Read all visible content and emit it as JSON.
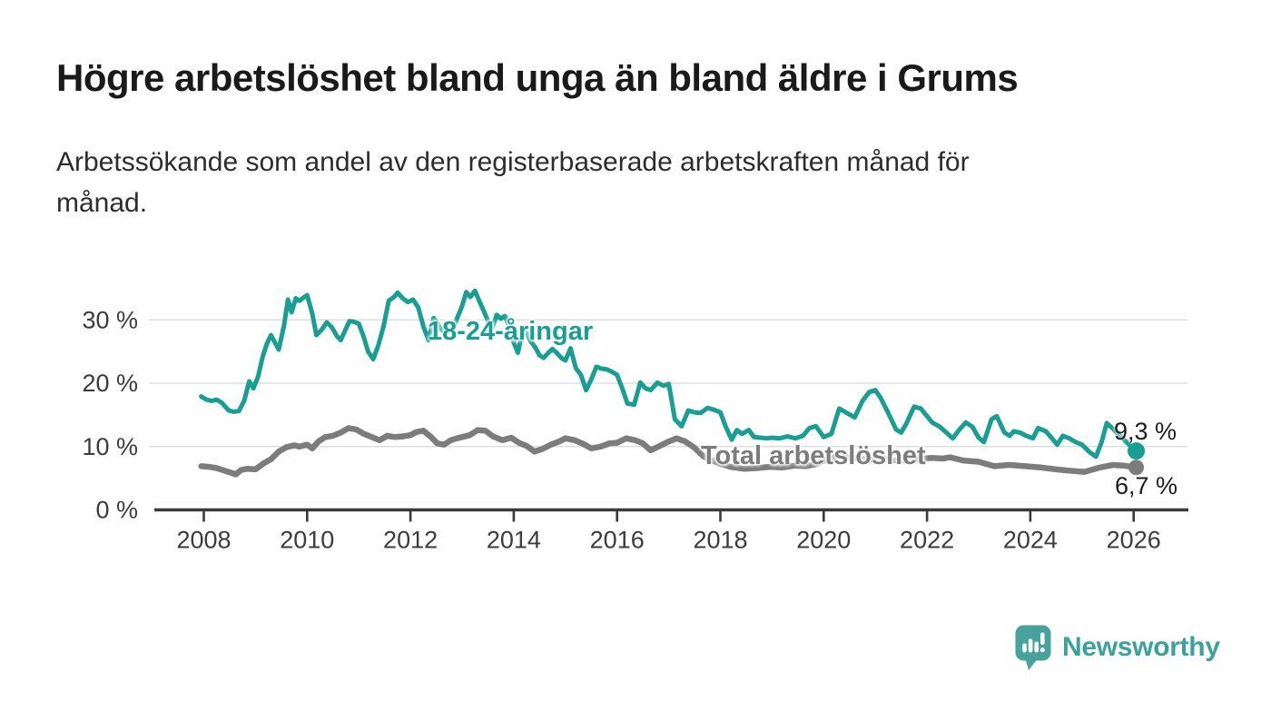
{
  "header": {
    "title": "Högre arbetslöshet bland unga än bland äldre i Grums",
    "subtitle_lines": [
      "Arbetssökande som andel av den registerbaserade arbetskraften månad för",
      "månad."
    ]
  },
  "footer": {
    "brand_name": "Newsworthy",
    "logo_icon": "newsworthy-speech-bubble-bar-chart-icon"
  },
  "colors": {
    "accent_teal": "#189e92",
    "total_gray": "#7c7c7c",
    "title_text": "#1a1a1a",
    "body_text": "#2d2d2d",
    "axis_text": "#3c3c3c",
    "axis_line": "#3a3a3a",
    "gridline": "#dedede",
    "end_label_text": "#1c1c1c",
    "logo_teal": "#47a29b"
  },
  "chart_data": {
    "type": "line",
    "unit": "%",
    "grid": "horizontal",
    "legend": "inline-series-labels",
    "x_axis": {
      "tick_values": [
        2008,
        2010,
        2012,
        2014,
        2016,
        2018,
        2020,
        2022,
        2024,
        2026
      ],
      "tick_labels": [
        "2008",
        "2010",
        "2012",
        "2014",
        "2016",
        "2018",
        "2020",
        "2022",
        "2024",
        "2026"
      ],
      "range": [
        2007.8,
        2027.0
      ]
    },
    "y_axis": {
      "tick_values": [
        0,
        10,
        20,
        30
      ],
      "tick_labels": [
        "0 %",
        "10 %",
        "20 %",
        "30 %"
      ],
      "range": [
        0,
        36
      ]
    },
    "series": [
      {
        "name": "18-24-åringar",
        "color": "#189e92",
        "end_label": "9,3 %",
        "last_value": 9.3,
        "points": [
          [
            2007.95,
            17.9
          ],
          [
            2008.05,
            17.4
          ],
          [
            2008.15,
            17.2
          ],
          [
            2008.25,
            17.4
          ],
          [
            2008.35,
            16.9
          ],
          [
            2008.48,
            15.7
          ],
          [
            2008.58,
            15.5
          ],
          [
            2008.68,
            15.6
          ],
          [
            2008.78,
            17.2
          ],
          [
            2008.88,
            20.3
          ],
          [
            2008.96,
            19.2
          ],
          [
            2009.05,
            21.0
          ],
          [
            2009.14,
            24.2
          ],
          [
            2009.22,
            26.2
          ],
          [
            2009.3,
            27.6
          ],
          [
            2009.38,
            26.4
          ],
          [
            2009.45,
            25.3
          ],
          [
            2009.55,
            29.0
          ],
          [
            2009.63,
            33.2
          ],
          [
            2009.7,
            31.2
          ],
          [
            2009.78,
            33.4
          ],
          [
            2009.85,
            33.0
          ],
          [
            2009.93,
            33.5
          ],
          [
            2010.0,
            33.9
          ],
          [
            2010.1,
            31.0
          ],
          [
            2010.18,
            27.6
          ],
          [
            2010.28,
            28.4
          ],
          [
            2010.38,
            29.6
          ],
          [
            2010.48,
            28.8
          ],
          [
            2010.58,
            27.4
          ],
          [
            2010.65,
            26.8
          ],
          [
            2010.75,
            28.6
          ],
          [
            2010.82,
            29.8
          ],
          [
            2010.9,
            29.7
          ],
          [
            2011.0,
            29.4
          ],
          [
            2011.1,
            27.2
          ],
          [
            2011.18,
            25.0
          ],
          [
            2011.28,
            23.8
          ],
          [
            2011.38,
            26.0
          ],
          [
            2011.48,
            29.0
          ],
          [
            2011.58,
            33.0
          ],
          [
            2011.68,
            33.6
          ],
          [
            2011.75,
            34.3
          ],
          [
            2011.85,
            33.4
          ],
          [
            2011.95,
            32.8
          ],
          [
            2012.05,
            33.2
          ],
          [
            2012.15,
            32.0
          ],
          [
            2012.25,
            29.0
          ],
          [
            2012.35,
            26.8
          ],
          [
            2012.45,
            30.3
          ],
          [
            2012.55,
            29.0
          ],
          [
            2012.63,
            28.2
          ],
          [
            2012.72,
            28.8
          ],
          [
            2012.8,
            27.8
          ],
          [
            2012.9,
            30.2
          ],
          [
            2013.0,
            32.2
          ],
          [
            2013.08,
            34.4
          ],
          [
            2013.16,
            33.6
          ],
          [
            2013.25,
            34.6
          ],
          [
            2013.33,
            33.0
          ],
          [
            2013.42,
            31.4
          ],
          [
            2013.5,
            29.8
          ],
          [
            2013.58,
            28.6
          ],
          [
            2013.67,
            30.8
          ],
          [
            2013.75,
            30.2
          ],
          [
            2013.83,
            30.6
          ],
          [
            2013.92,
            28.8
          ],
          [
            2014.0,
            26.4
          ],
          [
            2014.08,
            24.8
          ],
          [
            2014.17,
            28.4
          ],
          [
            2014.25,
            27.9
          ],
          [
            2014.33,
            26.6
          ],
          [
            2014.42,
            25.6
          ],
          [
            2014.5,
            24.4
          ],
          [
            2014.58,
            24.0
          ],
          [
            2014.67,
            24.8
          ],
          [
            2014.75,
            25.4
          ],
          [
            2014.83,
            24.8
          ],
          [
            2014.92,
            24.0
          ],
          [
            2015.0,
            23.6
          ],
          [
            2015.1,
            25.5
          ],
          [
            2015.2,
            22.4
          ],
          [
            2015.3,
            21.3
          ],
          [
            2015.4,
            18.9
          ],
          [
            2015.5,
            20.6
          ],
          [
            2015.6,
            22.6
          ],
          [
            2015.7,
            22.3
          ],
          [
            2015.8,
            22.2
          ],
          [
            2015.9,
            21.8
          ],
          [
            2016.0,
            21.3
          ],
          [
            2016.1,
            19.2
          ],
          [
            2016.2,
            16.8
          ],
          [
            2016.33,
            16.6
          ],
          [
            2016.45,
            20.1
          ],
          [
            2016.55,
            19.2
          ],
          [
            2016.65,
            18.9
          ],
          [
            2016.78,
            20.1
          ],
          [
            2016.9,
            19.6
          ],
          [
            2017.0,
            19.9
          ],
          [
            2017.12,
            14.3
          ],
          [
            2017.25,
            13.2
          ],
          [
            2017.38,
            15.7
          ],
          [
            2017.5,
            15.4
          ],
          [
            2017.62,
            15.3
          ],
          [
            2017.75,
            16.1
          ],
          [
            2017.88,
            15.8
          ],
          [
            2018.0,
            15.4
          ],
          [
            2018.1,
            13.2
          ],
          [
            2018.22,
            11.1
          ],
          [
            2018.32,
            12.6
          ],
          [
            2018.42,
            12.0
          ],
          [
            2018.55,
            12.6
          ],
          [
            2018.65,
            11.5
          ],
          [
            2018.78,
            11.4
          ],
          [
            2018.9,
            11.3
          ],
          [
            2019.0,
            11.4
          ],
          [
            2019.15,
            11.3
          ],
          [
            2019.3,
            11.6
          ],
          [
            2019.45,
            11.3
          ],
          [
            2019.6,
            11.7
          ],
          [
            2019.72,
            12.9
          ],
          [
            2019.85,
            13.2
          ],
          [
            2020.0,
            11.5
          ],
          [
            2020.15,
            12.0
          ],
          [
            2020.3,
            16.0
          ],
          [
            2020.45,
            15.3
          ],
          [
            2020.6,
            14.6
          ],
          [
            2020.75,
            17.2
          ],
          [
            2020.88,
            18.6
          ],
          [
            2021.0,
            18.9
          ],
          [
            2021.1,
            17.7
          ],
          [
            2021.25,
            15.3
          ],
          [
            2021.4,
            12.7
          ],
          [
            2021.5,
            12.2
          ],
          [
            2021.6,
            13.6
          ],
          [
            2021.75,
            16.3
          ],
          [
            2021.88,
            16.0
          ],
          [
            2022.0,
            14.8
          ],
          [
            2022.1,
            13.8
          ],
          [
            2022.25,
            13.1
          ],
          [
            2022.4,
            12.0
          ],
          [
            2022.5,
            11.3
          ],
          [
            2022.63,
            12.7
          ],
          [
            2022.75,
            13.8
          ],
          [
            2022.88,
            13.1
          ],
          [
            2023.0,
            11.4
          ],
          [
            2023.1,
            10.7
          ],
          [
            2023.25,
            14.3
          ],
          [
            2023.35,
            14.8
          ],
          [
            2023.5,
            12.2
          ],
          [
            2023.6,
            11.7
          ],
          [
            2023.68,
            12.4
          ],
          [
            2023.8,
            12.2
          ],
          [
            2023.92,
            11.7
          ],
          [
            2024.05,
            11.3
          ],
          [
            2024.15,
            12.9
          ],
          [
            2024.3,
            12.4
          ],
          [
            2024.42,
            11.3
          ],
          [
            2024.52,
            10.3
          ],
          [
            2024.63,
            11.7
          ],
          [
            2024.75,
            11.3
          ],
          [
            2024.88,
            10.7
          ],
          [
            2025.0,
            10.3
          ],
          [
            2025.15,
            9.1
          ],
          [
            2025.27,
            8.4
          ],
          [
            2025.38,
            10.7
          ],
          [
            2025.48,
            13.7
          ],
          [
            2025.6,
            12.8
          ],
          [
            2025.75,
            11.6
          ],
          [
            2025.9,
            10.4
          ],
          [
            2026.05,
            9.3
          ]
        ]
      },
      {
        "name": "Total arbetslöshet",
        "color": "#7c7c7c",
        "end_label": "6,7 %",
        "last_value": 6.7,
        "points": [
          [
            2007.95,
            6.9
          ],
          [
            2008.1,
            6.8
          ],
          [
            2008.25,
            6.6
          ],
          [
            2008.4,
            6.2
          ],
          [
            2008.55,
            5.8
          ],
          [
            2008.62,
            5.6
          ],
          [
            2008.72,
            6.3
          ],
          [
            2008.85,
            6.5
          ],
          [
            2009.0,
            6.4
          ],
          [
            2009.15,
            7.3
          ],
          [
            2009.3,
            8.0
          ],
          [
            2009.45,
            9.2
          ],
          [
            2009.6,
            9.9
          ],
          [
            2009.75,
            10.2
          ],
          [
            2009.85,
            10.0
          ],
          [
            2010.0,
            10.3
          ],
          [
            2010.1,
            9.7
          ],
          [
            2010.22,
            10.8
          ],
          [
            2010.35,
            11.5
          ],
          [
            2010.5,
            11.7
          ],
          [
            2010.65,
            12.2
          ],
          [
            2010.8,
            12.9
          ],
          [
            2010.95,
            12.7
          ],
          [
            2011.1,
            12.0
          ],
          [
            2011.25,
            11.5
          ],
          [
            2011.4,
            11.0
          ],
          [
            2011.55,
            11.7
          ],
          [
            2011.7,
            11.5
          ],
          [
            2011.85,
            11.6
          ],
          [
            2012.0,
            11.8
          ],
          [
            2012.12,
            12.3
          ],
          [
            2012.25,
            12.5
          ],
          [
            2012.4,
            11.5
          ],
          [
            2012.52,
            10.5
          ],
          [
            2012.65,
            10.3
          ],
          [
            2012.78,
            11.0
          ],
          [
            2012.9,
            11.3
          ],
          [
            2013.0,
            11.5
          ],
          [
            2013.15,
            11.8
          ],
          [
            2013.3,
            12.6
          ],
          [
            2013.45,
            12.5
          ],
          [
            2013.6,
            11.6
          ],
          [
            2013.78,
            11.0
          ],
          [
            2013.95,
            11.4
          ],
          [
            2014.1,
            10.6
          ],
          [
            2014.25,
            10.1
          ],
          [
            2014.4,
            9.2
          ],
          [
            2014.55,
            9.6
          ],
          [
            2014.72,
            10.3
          ],
          [
            2014.88,
            10.8
          ],
          [
            2015.0,
            11.3
          ],
          [
            2015.18,
            11.0
          ],
          [
            2015.35,
            10.4
          ],
          [
            2015.5,
            9.7
          ],
          [
            2015.68,
            10.0
          ],
          [
            2015.85,
            10.5
          ],
          [
            2016.0,
            10.6
          ],
          [
            2016.18,
            11.3
          ],
          [
            2016.35,
            11.0
          ],
          [
            2016.5,
            10.5
          ],
          [
            2016.65,
            9.4
          ],
          [
            2016.8,
            10.0
          ],
          [
            2017.0,
            10.8
          ],
          [
            2017.15,
            11.3
          ],
          [
            2017.32,
            10.8
          ],
          [
            2017.5,
            9.8
          ],
          [
            2017.68,
            8.4
          ],
          [
            2017.85,
            7.8
          ],
          [
            2018.02,
            7.2
          ],
          [
            2018.2,
            6.8
          ],
          [
            2018.45,
            6.5
          ],
          [
            2018.7,
            6.6
          ],
          [
            2018.95,
            6.8
          ],
          [
            2019.2,
            6.7
          ],
          [
            2019.45,
            7.0
          ],
          [
            2019.65,
            6.9
          ],
          [
            2019.85,
            7.2
          ],
          [
            2020.05,
            8.0
          ],
          [
            2020.25,
            8.4
          ],
          [
            2020.45,
            8.3
          ],
          [
            2020.68,
            8.1
          ],
          [
            2020.9,
            7.9
          ],
          [
            2021.15,
            8.1
          ],
          [
            2021.4,
            7.8
          ],
          [
            2021.65,
            7.9
          ],
          [
            2021.9,
            8.1
          ],
          [
            2022.1,
            8.2
          ],
          [
            2022.3,
            8.1
          ],
          [
            2022.45,
            8.3
          ],
          [
            2022.7,
            7.8
          ],
          [
            2023.0,
            7.6
          ],
          [
            2023.3,
            6.9
          ],
          [
            2023.6,
            7.1
          ],
          [
            2023.9,
            6.9
          ],
          [
            2024.2,
            6.7
          ],
          [
            2024.5,
            6.4
          ],
          [
            2024.75,
            6.2
          ],
          [
            2025.05,
            6.0
          ],
          [
            2025.35,
            6.7
          ],
          [
            2025.6,
            7.1
          ],
          [
            2025.8,
            7.0
          ],
          [
            2026.05,
            6.7
          ]
        ]
      }
    ]
  }
}
